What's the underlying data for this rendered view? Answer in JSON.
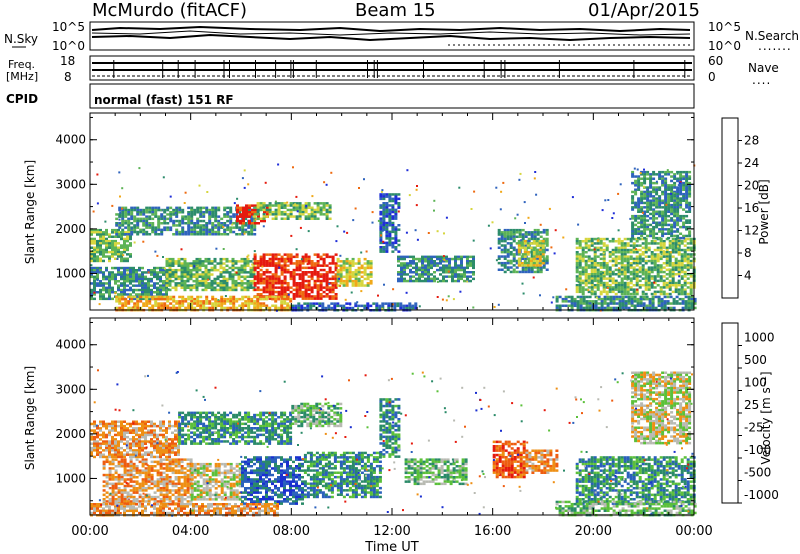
{
  "header": {
    "station": "McMurdo (fitACF)",
    "beam": "Beam 15",
    "date": "01/Apr/2015"
  },
  "top_panels": {
    "nsky_label": "N.Sky",
    "nsky_ticks": [
      "10^5",
      "10^0"
    ],
    "nsearch_label": "N.Search",
    "nsearch_ticks": [
      "10^5",
      "10^0"
    ],
    "freq_label_1": "Freq.",
    "freq_label_2": "[MHz]",
    "freq_ticks": [
      "18",
      "8"
    ],
    "nave_label": "Nave",
    "nave_ticks": [
      "60",
      "0"
    ],
    "cpid_label": "CPID",
    "cpid_text": "normal (fast) 151 RF"
  },
  "chart_data": [
    {
      "type": "heatmap",
      "name": "power-panel",
      "ylabel": "Slant Range [km]",
      "yticks": [
        "1000",
        "2000",
        "3000",
        "4000"
      ],
      "ylim": [
        180,
        4600
      ],
      "xlim": [
        0,
        24
      ],
      "colorbar_label": "Power [dB]",
      "colorbar_ticks": [
        "4",
        "8",
        "12",
        "16",
        "20",
        "24",
        "28"
      ],
      "colorbar_range": [
        0,
        32
      ],
      "colors": [
        "#1f2dd8",
        "#2f63bd",
        "#2c8c6b",
        "#5db356",
        "#d6d63e",
        "#f0a818",
        "#ee6a10",
        "#e51a0e"
      ],
      "regions": [
        {
          "t": [
            0.0,
            1.6
          ],
          "r": [
            1300,
            2000
          ],
          "level": 3
        },
        {
          "t": [
            1.0,
            6.5
          ],
          "r": [
            1900,
            2500
          ],
          "level": 2
        },
        {
          "t": [
            5.8,
            7.0
          ],
          "r": [
            2150,
            2550
          ],
          "level": 7
        },
        {
          "t": [
            6.5,
            9.5
          ],
          "r": [
            2250,
            2600
          ],
          "level": 3
        },
        {
          "t": [
            0.0,
            3.0
          ],
          "r": [
            450,
            1150
          ],
          "level": 2
        },
        {
          "t": [
            3.0,
            6.5
          ],
          "r": [
            650,
            1350
          ],
          "level": 3
        },
        {
          "t": [
            6.5,
            9.8
          ],
          "r": [
            420,
            1450
          ],
          "level": 7
        },
        {
          "t": [
            9.8,
            11.2
          ],
          "r": [
            750,
            1350
          ],
          "level": 4
        },
        {
          "t": [
            1.0,
            8.0
          ],
          "r": [
            200,
            500
          ],
          "level": 5
        },
        {
          "t": [
            8.0,
            13.0
          ],
          "r": [
            180,
            350
          ],
          "level": 1
        },
        {
          "t": [
            11.5,
            12.3
          ],
          "r": [
            1500,
            2800
          ],
          "level": 1
        },
        {
          "t": [
            12.2,
            15.2
          ],
          "r": [
            850,
            1400
          ],
          "level": 2
        },
        {
          "t": [
            16.2,
            18.2
          ],
          "r": [
            1050,
            2000
          ],
          "level": 2
        },
        {
          "t": [
            17.0,
            18.0
          ],
          "r": [
            1200,
            1750
          ],
          "level": 4
        },
        {
          "t": [
            19.3,
            24.0
          ],
          "r": [
            550,
            1800
          ],
          "level": 3
        },
        {
          "t": [
            21.5,
            23.8
          ],
          "r": [
            1800,
            3300
          ],
          "level": 2
        },
        {
          "t": [
            18.5,
            24.0
          ],
          "r": [
            200,
            500
          ],
          "level": 2
        }
      ]
    },
    {
      "type": "heatmap",
      "name": "velocity-panel",
      "ylabel": "Slant Range [km]",
      "yticks": [
        "1000",
        "2000",
        "3000",
        "4000"
      ],
      "ylim": [
        180,
        4600
      ],
      "xlim": [
        0,
        24
      ],
      "colorbar_label": "Velocity [m s⁻¹]",
      "colorbar_ticks": [
        "1000",
        "500",
        "100",
        "25",
        "-25",
        "-100",
        "-500",
        "-1000"
      ],
      "colors": [
        "#1a2fd0",
        "#2a60bc",
        "#2a8a68",
        "#5bc03a",
        "#b8bab2",
        "#ee8f14",
        "#ee5c10",
        "#e51a0e"
      ],
      "regions": [
        {
          "t": [
            0.0,
            3.5
          ],
          "r": [
            1500,
            2300
          ],
          "level": 5
        },
        {
          "t": [
            3.5,
            8.0
          ],
          "r": [
            1800,
            2500
          ],
          "level": 2
        },
        {
          "t": [
            8.0,
            10.0
          ],
          "r": [
            2200,
            2700
          ],
          "level": 3
        },
        {
          "t": [
            0.5,
            4.0
          ],
          "r": [
            450,
            1450
          ],
          "level": 5
        },
        {
          "t": [
            4.0,
            6.0
          ],
          "r": [
            550,
            1350
          ],
          "level": 4
        },
        {
          "t": [
            6.0,
            8.5
          ],
          "r": [
            450,
            1500
          ],
          "level": 1
        },
        {
          "t": [
            8.5,
            11.5
          ],
          "r": [
            600,
            1600
          ],
          "level": 2
        },
        {
          "t": [
            11.5,
            12.3
          ],
          "r": [
            1500,
            2800
          ],
          "level": 2
        },
        {
          "t": [
            12.5,
            15.0
          ],
          "r": [
            900,
            1450
          ],
          "level": 3
        },
        {
          "t": [
            16.0,
            17.3
          ],
          "r": [
            1050,
            1850
          ],
          "level": 6
        },
        {
          "t": [
            17.3,
            18.5
          ],
          "r": [
            1150,
            1650
          ],
          "level": 5
        },
        {
          "t": [
            19.3,
            24.0
          ],
          "r": [
            450,
            1500
          ],
          "level": 2
        },
        {
          "t": [
            21.5,
            23.8
          ],
          "r": [
            1800,
            3400
          ],
          "level": 4
        },
        {
          "t": [
            0.0,
            7.5
          ],
          "r": [
            200,
            450
          ],
          "level": 5
        },
        {
          "t": [
            18.5,
            24.0
          ],
          "r": [
            200,
            500
          ],
          "level": 3
        }
      ]
    }
  ],
  "x_axis": {
    "ticks": [
      "00:00",
      "04:00",
      "08:00",
      "12:00",
      "16:00",
      "20:00",
      "00:00"
    ],
    "label": "Time UT"
  }
}
